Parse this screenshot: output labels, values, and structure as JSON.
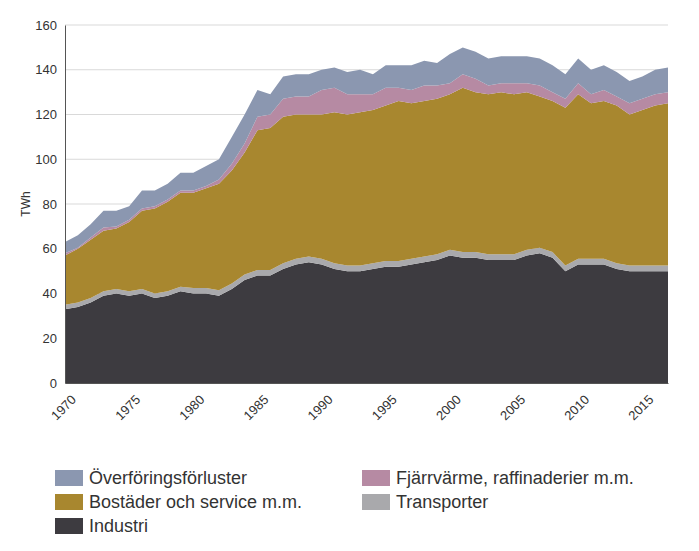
{
  "chart_data": {
    "type": "area",
    "stacked": true,
    "grid": true,
    "y_label": "TWh",
    "x": [
      1970,
      1971,
      1972,
      1973,
      1974,
      1975,
      1976,
      1977,
      1978,
      1979,
      1980,
      1981,
      1982,
      1983,
      1984,
      1985,
      1986,
      1987,
      1988,
      1989,
      1990,
      1991,
      1992,
      1993,
      1994,
      1995,
      1996,
      1997,
      1998,
      1999,
      2000,
      2001,
      2002,
      2003,
      2004,
      2005,
      2006,
      2007,
      2008,
      2009,
      2010,
      2011,
      2012,
      2013,
      2014,
      2015,
      2016,
      2017
    ],
    "xlim": [
      1970,
      2017
    ],
    "xticks": [
      1970,
      1975,
      1980,
      1985,
      1990,
      1995,
      2000,
      2005,
      2010,
      2015
    ],
    "ylim": [
      0,
      160
    ],
    "yticks": [
      0,
      20,
      40,
      60,
      80,
      100,
      120,
      140,
      160
    ],
    "series": [
      {
        "name": "Industri",
        "color": "#3d3b40",
        "values": [
          33,
          34,
          36,
          39,
          40,
          39,
          40,
          38,
          39,
          41,
          40,
          40,
          39,
          42,
          46,
          48,
          48,
          51,
          53,
          54,
          53,
          51,
          50,
          50,
          51,
          52,
          52,
          53,
          54,
          55,
          57,
          56,
          56,
          55,
          55,
          55,
          57,
          58,
          56,
          50,
          53,
          53,
          53,
          51,
          50,
          50,
          50,
          50
        ]
      },
      {
        "name": "Transporter",
        "color": "#a9a9ac",
        "values": [
          2,
          2,
          2,
          2,
          2,
          2,
          2,
          2,
          2,
          2,
          2.5,
          2.5,
          2.5,
          2.5,
          2.5,
          2.5,
          2.5,
          2.5,
          2.5,
          2.5,
          2.5,
          2.5,
          2.5,
          2.5,
          2.5,
          2.5,
          2.5,
          2.5,
          2.5,
          2.5,
          2.5,
          2.5,
          2.5,
          2.5,
          2.5,
          2.5,
          2.5,
          2.5,
          2.5,
          2.5,
          2.5,
          2.5,
          2.5,
          2.5,
          2.5,
          2.5,
          2.5,
          2.5
        ]
      },
      {
        "name": "Bostäder och service m.m.",
        "color": "#a8872f",
        "values": [
          22,
          24,
          26,
          27,
          27,
          31,
          35,
          38,
          40,
          42,
          42.5,
          44.5,
          47.5,
          50.5,
          54.5,
          62.5,
          63.5,
          65.5,
          64.5,
          63.5,
          64.5,
          67.5,
          67.5,
          68.5,
          68.5,
          69.5,
          71.5,
          69.5,
          69.5,
          69.5,
          69.5,
          73.5,
          71.5,
          71.5,
          72.5,
          71.5,
          70.5,
          67.5,
          67.5,
          70.5,
          73.5,
          69.5,
          70.5,
          70.5,
          67.5,
          69.5,
          71.5,
          72.5
        ]
      },
      {
        "name": "Fjärrvärme, raffinaderier m.m.",
        "color": "#b68aa3",
        "values": [
          1,
          0.5,
          1,
          1.5,
          1,
          1,
          1,
          1,
          1,
          1,
          1,
          1,
          2,
          3,
          4,
          6,
          6,
          8,
          8,
          8,
          11,
          11,
          9,
          8,
          7,
          8,
          6,
          6,
          7,
          6,
          5,
          6,
          6,
          4,
          4,
          5,
          4,
          5,
          4,
          4,
          5,
          4,
          5,
          4,
          5,
          5,
          5,
          5
        ]
      },
      {
        "name": "Överföringsförluster",
        "color": "#8b97b0",
        "values": [
          5,
          5.5,
          6,
          7.5,
          7,
          6,
          8,
          7,
          7,
          8,
          8,
          9,
          9,
          12,
          13,
          12,
          9,
          10,
          10,
          10,
          9,
          9,
          10,
          11,
          9,
          10,
          10,
          11,
          11,
          10,
          13,
          12,
          12,
          12,
          12,
          12,
          12,
          12,
          12,
          11,
          11,
          11,
          11,
          11,
          10,
          10,
          11,
          11
        ]
      }
    ],
    "legend": "bottom"
  }
}
